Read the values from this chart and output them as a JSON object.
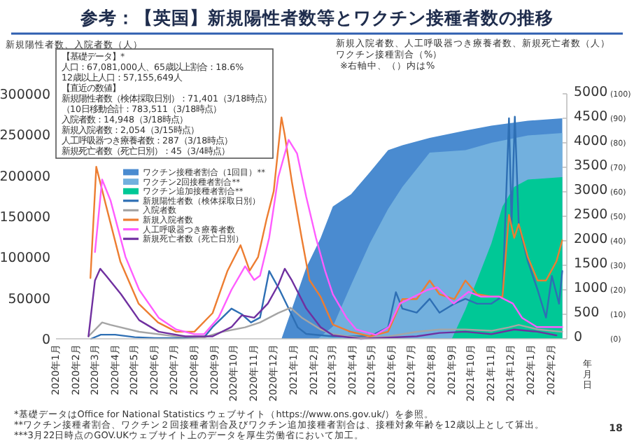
{
  "chart_data": {
    "type": "line",
    "title": "参考：【英国】新規陽性者数等とワクチン接種者数の推移",
    "ylabel": "新規陽性者数、入院者数（人）",
    "y2label": "新規入院者数、人工呼吸器つき療養者数、新規死亡者数（人）",
    "y3label": "ワクチン接種割合（%）",
    "xlabel": "年月日",
    "xlim": [
      "2020-01-01",
      "2022-02-25"
    ],
    "xticks": [
      {
        "value": "2020-01",
        "label": "2020年1月"
      },
      {
        "value": "2020-02",
        "label": "2020年2月"
      },
      {
        "value": "2020-03",
        "label": "2020年3月"
      },
      {
        "value": "2020-04",
        "label": "2020年4月"
      },
      {
        "value": "2020-05",
        "label": "2020年5月"
      },
      {
        "value": "2020-06",
        "label": "2020年6月"
      },
      {
        "value": "2020-07",
        "label": "2020年7月"
      },
      {
        "value": "2020-08",
        "label": "2020年8月"
      },
      {
        "value": "2020-09",
        "label": "2020年9月"
      },
      {
        "value": "2020-10",
        "label": "2020年10月"
      },
      {
        "value": "2020-11",
        "label": "2020年11月"
      },
      {
        "value": "2020-12",
        "label": "2020年12月"
      },
      {
        "value": "2021-01",
        "label": "2021年1月"
      },
      {
        "value": "2021-02",
        "label": "2021年2月"
      },
      {
        "value": "2021-03",
        "label": "2021年3月"
      },
      {
        "value": "2021-04",
        "label": "2021年4月"
      },
      {
        "value": "2021-05",
        "label": "2021年5月"
      },
      {
        "value": "2021-06",
        "label": "2021年6月"
      },
      {
        "value": "2021-07",
        "label": "2021年7月"
      },
      {
        "value": "2021-08",
        "label": "2021年8月"
      },
      {
        "value": "2021-09",
        "label": "2021年9月"
      },
      {
        "value": "2021-10",
        "label": "2021年10月"
      },
      {
        "value": "2021-11",
        "label": "2021年11月"
      },
      {
        "value": "2021-12",
        "label": "2021年12月"
      },
      {
        "value": "2022-01",
        "label": "2022年1月"
      },
      {
        "value": "2022-02",
        "label": "2022年2月"
      }
    ],
    "ylim": [
      0,
      300000
    ],
    "yticks": [
      0,
      50000,
      100000,
      150000,
      200000,
      250000,
      300000
    ],
    "y2lim": [
      0,
      5000
    ],
    "y2ticks": [
      0,
      500,
      1000,
      1500,
      2000,
      2500,
      3000,
      3500,
      4000,
      4500,
      5000
    ],
    "y3lim": [
      0,
      100
    ],
    "y3ticks": [
      {
        "value": 0,
        "label": "(0)"
      },
      {
        "value": 10,
        "label": "(10)"
      },
      {
        "value": 20,
        "label": "(20)"
      },
      {
        "value": 30,
        "label": "(30)"
      },
      {
        "value": 40,
        "label": "(40)"
      },
      {
        "value": 50,
        "label": "(50)"
      },
      {
        "value": 60,
        "label": "(60)"
      },
      {
        "value": 70,
        "label": "(70)"
      },
      {
        "value": 80,
        "label": "(80)"
      },
      {
        "value": 90,
        "label": "(90)"
      },
      {
        "value": 100,
        "label": "(100)"
      }
    ],
    "legend": "left",
    "annotations": [
      "【基礎データ】*",
      "人口：67,081,000人、65歳以上割合：18.6%",
      "12歳以上人口：57,155,649人",
      "【直近の数値】",
      "新規陽性者数（検体採取日別）：71,401（3/18時点）",
      "（10日移動合計：783,511（3/18時点）",
      "入院者数：14,948（3/18時点）",
      "新規入院者数：2,054（3/15時点）",
      "人工呼吸器つき療養者数：287（3/18時点）",
      "新規死亡者数（死亡日別）：45（3/4時点）",
      "※右軸中、（）内は%",
      "*基礎データはOffice for National Statistics ウェブサイト（https://www.ons.gov.uk/）を参照。",
      "**ワクチン接種者割合、ワクチン２回接種者割合及びワクチン追加接種者割合は、接種対象年齢を12歳以上として算出。",
      "***3月22日時点のGOV.UKウェブサイト上のデータを厚生労働省において加工。",
      "18"
    ],
    "series": [
      {
        "name": "ワクチン接種者割合（1回目）**",
        "type": "area",
        "axis": "y3",
        "color": "#4a8bd0",
        "x": [
          "2020-12-13",
          "2021-01-20",
          "2021-02-11",
          "2021-03-02",
          "2021-03-30",
          "2021-04-28",
          "2021-05-26",
          "2021-06-17",
          "2021-07-29",
          "2021-09-22",
          "2021-11-01",
          "2021-12-27",
          "2022-02-18"
        ],
        "values": [
          0,
          29,
          41,
          54,
          59,
          68,
          77,
          79,
          82,
          85,
          87,
          89,
          90
        ]
      },
      {
        "name": "ワクチン2回接種者割合**",
        "type": "area",
        "axis": "y3",
        "color": "#72b0de",
        "x": [
          "2021-02-07",
          "2021-03-02",
          "2021-03-30",
          "2021-04-28",
          "2021-05-26",
          "2021-06-17",
          "2021-07-29",
          "2021-09-22",
          "2021-11-01",
          "2021-12-27",
          "2022-02-18"
        ],
        "values": [
          0,
          5,
          22,
          39,
          53,
          62,
          76,
          77,
          80,
          83,
          84
        ]
      },
      {
        "name": "ワクチン追加接種者割合**",
        "type": "area",
        "axis": "y3",
        "color": "#00c896",
        "x": [
          "2021-09-01",
          "2021-09-22",
          "2021-10-10",
          "2021-11-01",
          "2021-11-18",
          "2021-12-06",
          "2021-12-27",
          "2022-02-18"
        ],
        "values": [
          0,
          12,
          24,
          39,
          54,
          62,
          65,
          66
        ]
      },
      {
        "name": "新規陽性者数（検体採取日別）",
        "axis": "y",
        "color": "#2e6fb4",
        "x": [
          "2020-02-24",
          "2020-03-10",
          "2020-04-01",
          "2020-05-01",
          "2020-06-01",
          "2020-07-16",
          "2020-08-16",
          "2020-08-29",
          "2020-09-13",
          "2020-09-27",
          "2020-10-13",
          "2020-10-27",
          "2020-11-10",
          "2020-11-24",
          "2020-12-10",
          "2020-12-24",
          "2021-01-07",
          "2021-01-20",
          "2021-03-02",
          "2021-04-28",
          "2021-05-26",
          "2021-06-07",
          "2021-06-17",
          "2021-07-09",
          "2021-07-29",
          "2021-08-13",
          "2021-09-05",
          "2021-09-22",
          "2021-10-10",
          "2021-11-01",
          "2021-11-18",
          "2021-11-28",
          "2021-12-02",
          "2021-12-07",
          "2021-12-13",
          "2021-12-27",
          "2022-01-11",
          "2022-01-24",
          "2022-02-02",
          "2022-02-13",
          "2022-02-18"
        ],
        "values": [
          0,
          5000,
          5000,
          2000,
          1000,
          800,
          2000,
          14400,
          26000,
          37000,
          30000,
          20000,
          26000,
          83000,
          60000,
          37000,
          14000,
          6000,
          3000,
          3000,
          14000,
          57000,
          37000,
          32000,
          49000,
          32000,
          43000,
          49000,
          43000,
          43000,
          52000,
          270000,
          140000,
          272000,
          140000,
          95000,
          60000,
          26000,
          77000,
          43000,
          83000
        ]
      },
      {
        "name": "入院者数",
        "axis": "y",
        "color": "#a5a5a5",
        "x": [
          "2020-02-20",
          "2020-03-12",
          "2020-03-25",
          "2020-05-08",
          "2020-07-04",
          "2020-08-16",
          "2020-09-13",
          "2020-10-18",
          "2020-11-10",
          "2020-12-08",
          "2020-12-27",
          "2021-01-13",
          "2021-02-11",
          "2021-03-02",
          "2021-04-14",
          "2021-05-26",
          "2021-07-09",
          "2021-08-13",
          "2021-09-22",
          "2021-11-01",
          "2021-11-28",
          "2021-12-13",
          "2022-01-11",
          "2022-02-18"
        ],
        "values": [
          3000,
          20000,
          17000,
          8600,
          2900,
          1700,
          8600,
          14000,
          20000,
          31600,
          38000,
          26000,
          11500,
          5700,
          1100,
          2900,
          8600,
          11500,
          11500,
          9800,
          14000,
          17000,
          11500,
          8600
        ]
      },
      {
        "name": "新規入院者数",
        "axis": "y2",
        "color": "#ed7d31",
        "x": [
          "2020-02-23",
          "2020-03-03",
          "2020-03-18",
          "2020-04-09",
          "2020-05-07",
          "2020-06-06",
          "2020-07-04",
          "2020-08-01",
          "2020-08-29",
          "2020-09-21",
          "2020-10-11",
          "2020-10-25",
          "2020-11-07",
          "2020-11-20",
          "2020-12-01",
          "2020-12-13",
          "2020-12-18",
          "2020-12-29",
          "2021-01-13",
          "2021-01-25",
          "2021-02-11",
          "2021-03-02",
          "2021-03-29",
          "2021-04-28",
          "2021-05-26",
          "2021-06-17",
          "2021-07-09",
          "2021-07-29",
          "2021-08-13",
          "2021-09-05",
          "2021-09-22",
          "2021-10-10",
          "2021-11-01",
          "2021-11-18",
          "2021-11-28",
          "2021-12-06",
          "2021-12-13",
          "2021-12-27",
          "2022-01-11",
          "2022-01-24",
          "2022-02-09",
          "2022-02-18"
        ],
        "values": [
          1240,
          3510,
          2720,
          1580,
          720,
          335,
          145,
          145,
          525,
          1390,
          1910,
          1390,
          1670,
          2440,
          3010,
          4520,
          4160,
          3200,
          2060,
          1200,
          860,
          290,
          145,
          50,
          145,
          810,
          810,
          1190,
          910,
          810,
          1190,
          910,
          860,
          860,
          2530,
          2060,
          2340,
          1670,
          1190,
          1190,
          1580,
          2010
        ]
      },
      {
        "name": "人工呼吸器つき療養者数",
        "axis": "y2",
        "color": "#ff5cff",
        "x": [
          "2020-03-01",
          "2020-03-12",
          "2020-03-25",
          "2020-04-17",
          "2020-05-08",
          "2020-06-07",
          "2020-07-04",
          "2020-08-01",
          "2020-08-16",
          "2020-09-07",
          "2020-09-27",
          "2020-10-18",
          "2020-11-01",
          "2020-11-10",
          "2020-11-24",
          "2020-12-08",
          "2020-12-24",
          "2021-01-06",
          "2021-01-20",
          "2021-02-04",
          "2021-02-18",
          "2021-03-02",
          "2021-03-23",
          "2021-04-07",
          "2021-05-07",
          "2021-05-27",
          "2021-06-13",
          "2021-06-27",
          "2021-07-26",
          "2021-08-10",
          "2021-09-04",
          "2021-09-27",
          "2021-10-16",
          "2021-11-13",
          "2021-12-04",
          "2021-12-18",
          "2022-01-10",
          "2022-02-01",
          "2022-02-18"
        ],
        "values": [
          1770,
          3250,
          2820,
          1670,
          1000,
          430,
          190,
          95,
          95,
          430,
          1000,
          1480,
          1200,
          1290,
          2060,
          3300,
          4060,
          3780,
          2900,
          2060,
          1390,
          910,
          430,
          190,
          80,
          240,
          720,
          810,
          1000,
          1050,
          720,
          960,
          860,
          860,
          720,
          430,
          240,
          240,
          240
        ]
      },
      {
        "name": "新規死亡者数（死亡日別）",
        "axis": "y2",
        "color": "#7030a0",
        "x": [
          "2020-02-20",
          "2020-03-01",
          "2020-03-09",
          "2020-03-18",
          "2020-04-10",
          "2020-05-08",
          "2020-06-07",
          "2020-07-18",
          "2020-08-29",
          "2020-09-27",
          "2020-10-13",
          "2020-11-01",
          "2020-11-22",
          "2020-12-08",
          "2020-12-18",
          "2020-12-29",
          "2021-01-20",
          "2021-02-11",
          "2021-03-02",
          "2021-04-14",
          "2021-07-09",
          "2021-08-13",
          "2021-09-22",
          "2021-11-01",
          "2021-12-06",
          "2022-01-11",
          "2022-02-09"
        ],
        "values": [
          50,
          1190,
          1430,
          1290,
          910,
          380,
          145,
          50,
          50,
          240,
          480,
          430,
          720,
          1100,
          1430,
          1190,
          620,
          240,
          70,
          0,
          50,
          120,
          145,
          95,
          190,
          145,
          70
        ]
      }
    ]
  }
}
